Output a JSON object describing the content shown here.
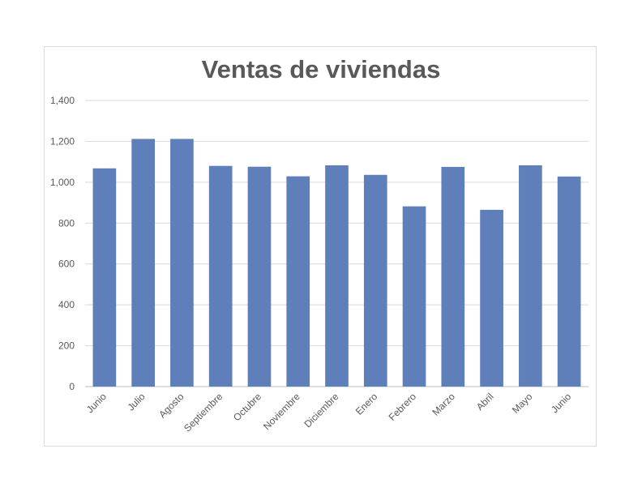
{
  "chart_data": {
    "type": "bar",
    "title": "Ventas de viviendas",
    "xlabel": "",
    "ylabel": "",
    "categories": [
      "Junio",
      "Julio",
      "Agosto",
      "Septiembre",
      "Octubre",
      "Noviembre",
      "Diciembre",
      "Enero",
      "Febrero",
      "Marzo",
      "Abril",
      "Mayo",
      "Junio"
    ],
    "values": [
      1068,
      1212,
      1212,
      1080,
      1076,
      1029,
      1083,
      1036,
      882,
      1075,
      865,
      1083,
      1028
    ],
    "ylim": [
      0,
      1400
    ],
    "yticks": [
      "0",
      "200",
      "400",
      "600",
      "800",
      "1,000",
      "1,200",
      "1,400"
    ],
    "ytick_values": [
      0,
      200,
      400,
      600,
      800,
      1000,
      1200,
      1400
    ],
    "grid": true,
    "legend": "none",
    "bar_color": "#5f7fba",
    "grid_color": "#d9d9d9"
  }
}
